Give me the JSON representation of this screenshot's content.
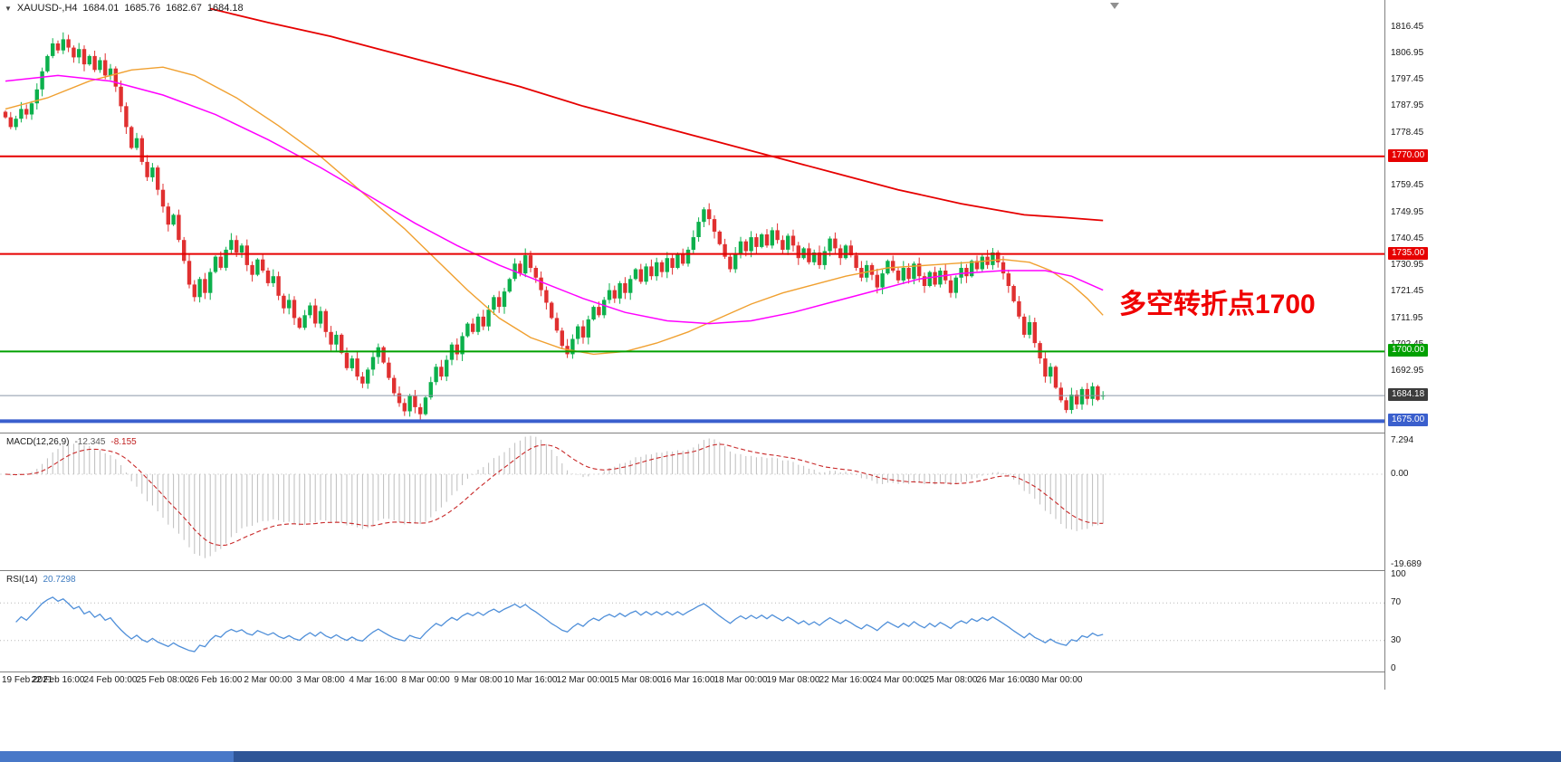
{
  "ui": {
    "header": {
      "expander_icon": "▼",
      "symbol": "XAUUSD-,H4",
      "open": "1684.01",
      "high": "1685.76",
      "low": "1682.67",
      "close": "1684.18"
    },
    "macd_label": {
      "name": "MACD(12,26,9)",
      "main": "-12.345",
      "signal": "-8.155"
    },
    "rsi_label": {
      "name": "RSI(14)",
      "value": "20.7298"
    },
    "annotation_text": "多空转折点1700"
  },
  "chart_data": [
    {
      "type": "candlestick",
      "symbol": "XAUUSD-",
      "timeframe": "H4",
      "first_open": 1786.0,
      "closes": [
        1784.0,
        1780.5,
        1783.5,
        1787.0,
        1785.0,
        1789.0,
        1794.0,
        1800.5,
        1806.0,
        1810.5,
        1808.0,
        1812.0,
        1809.0,
        1805.5,
        1808.5,
        1803.0,
        1806.0,
        1801.0,
        1804.5,
        1799.0,
        1801.5,
        1795.0,
        1788.0,
        1780.5,
        1773.0,
        1776.5,
        1768.0,
        1762.5,
        1766.0,
        1758.0,
        1752.0,
        1745.5,
        1749.0,
        1740.0,
        1732.5,
        1724.0,
        1719.5,
        1726.0,
        1721.0,
        1728.5,
        1734.0,
        1730.0,
        1736.5,
        1740.0,
        1735.5,
        1738.0,
        1731.0,
        1727.5,
        1733.0,
        1729.0,
        1724.5,
        1727.0,
        1720.0,
        1715.5,
        1718.5,
        1712.0,
        1708.5,
        1713.0,
        1716.5,
        1710.0,
        1714.5,
        1707.0,
        1702.5,
        1706.0,
        1699.5,
        1694.0,
        1697.5,
        1691.0,
        1688.5,
        1693.5,
        1698.0,
        1701.5,
        1696.0,
        1690.5,
        1685.0,
        1681.5,
        1678.5,
        1684.0,
        1680.0,
        1677.5,
        1683.5,
        1689.0,
        1694.5,
        1691.0,
        1697.0,
        1702.5,
        1699.0,
        1705.5,
        1710.0,
        1707.0,
        1712.5,
        1709.0,
        1715.0,
        1719.5,
        1716.0,
        1721.5,
        1726.0,
        1731.5,
        1728.0,
        1734.5,
        1730.0,
        1726.5,
        1722.0,
        1717.5,
        1712.0,
        1707.5,
        1702.0,
        1699.0,
        1704.5,
        1709.0,
        1705.0,
        1711.5,
        1716.0,
        1713.0,
        1718.5,
        1722.0,
        1719.0,
        1724.5,
        1721.0,
        1726.0,
        1729.5,
        1725.0,
        1730.5,
        1727.0,
        1732.0,
        1728.5,
        1733.5,
        1730.0,
        1735.0,
        1731.5,
        1736.5,
        1741.0,
        1746.5,
        1751.0,
        1747.5,
        1743.0,
        1738.5,
        1734.0,
        1729.5,
        1735.0,
        1739.5,
        1736.0,
        1741.0,
        1737.5,
        1742.0,
        1738.0,
        1743.5,
        1740.0,
        1736.5,
        1741.5,
        1738.0,
        1733.5,
        1737.0,
        1732.0,
        1735.5,
        1731.0,
        1736.0,
        1740.5,
        1737.0,
        1733.5,
        1738.0,
        1734.5,
        1730.0,
        1726.5,
        1731.0,
        1727.5,
        1723.0,
        1728.0,
        1732.5,
        1729.0,
        1725.5,
        1730.0,
        1726.0,
        1731.5,
        1727.0,
        1723.5,
        1728.5,
        1724.0,
        1729.0,
        1725.5,
        1721.0,
        1726.5,
        1730.0,
        1727.0,
        1732.5,
        1729.5,
        1734.0,
        1731.0,
        1735.5,
        1732.0,
        1728.0,
        1723.5,
        1718.0,
        1712.5,
        1706.0,
        1710.5,
        1703.0,
        1697.5,
        1691.0,
        1694.5,
        1687.0,
        1682.5,
        1679.0,
        1684.5,
        1681.0,
        1686.5,
        1683.0,
        1687.5,
        1682.67,
        1684.18
      ],
      "last_bar": {
        "open": 1684.01,
        "high": 1685.76,
        "low": 1682.67,
        "close": 1684.18
      },
      "colors": {
        "up": "#0cb04c",
        "down": "#e03030"
      },
      "y_ticks": [
        {
          "t": "1816.45",
          "v": 1816.45
        },
        {
          "t": "1806.95",
          "v": 1806.95
        },
        {
          "t": "1797.45",
          "v": 1797.45
        },
        {
          "t": "1787.95",
          "v": 1787.95
        },
        {
          "t": "1778.45",
          "v": 1778.45
        },
        {
          "t": "1759.45",
          "v": 1759.45
        },
        {
          "t": "1749.95",
          "v": 1749.95
        },
        {
          "t": "1740.45",
          "v": 1740.45
        },
        {
          "t": "1730.95",
          "v": 1730.95
        },
        {
          "t": "1721.45",
          "v": 1721.45
        },
        {
          "t": "1711.95",
          "v": 1711.95
        },
        {
          "t": "1702.45",
          "v": 1702.45
        },
        {
          "t": "1692.95",
          "v": 1692.95
        }
      ],
      "x_tick_labels": [
        "19 Feb 2021",
        "22 Feb 16:00",
        "24 Feb 00:00",
        "25 Feb 08:00",
        "26 Feb 16:00",
        "2 Mar 00:00",
        "3 Mar 08:00",
        "4 Mar 16:00",
        "8 Mar 00:00",
        "9 Mar 08:00",
        "10 Mar 16:00",
        "12 Mar 00:00",
        "15 Mar 08:00",
        "16 Mar 16:00",
        "18 Mar 00:00",
        "19 Mar 08:00",
        "22 Mar 16:00",
        "24 Mar 00:00",
        "25 Mar 08:00",
        "26 Mar 16:00",
        "30 Mar 00:00"
      ],
      "x_tick_interval": 10,
      "hlines": [
        {
          "price": 1770.0,
          "color": "#e60000",
          "width": 2,
          "label": "1770.00",
          "label_bg": "#e60000"
        },
        {
          "price": 1735.0,
          "color": "#e60000",
          "width": 2,
          "label": "1735.00",
          "label_bg": "#e60000"
        },
        {
          "price": 1700.0,
          "color": "#00a000",
          "width": 2,
          "label": "1700.00",
          "label_bg": "#00a000"
        },
        {
          "price": 1675.0,
          "color": "#3a5fcd",
          "width": 4,
          "label": "1675.00",
          "label_bg": "#3a5fcd"
        },
        {
          "price": 1684.18,
          "color": "#8a97a8",
          "width": 1,
          "label": "1684.18",
          "label_bg": "#3c3c3c"
        }
      ],
      "moving_averages": [
        {
          "name": "ma-fast-orange",
          "color": "#f0a030",
          "width": 1.4,
          "points": [
            [
              0,
              1787
            ],
            [
              8,
              1791
            ],
            [
              16,
              1797
            ],
            [
              24,
              1801
            ],
            [
              30,
              1802
            ],
            [
              36,
              1799
            ],
            [
              44,
              1791
            ],
            [
              52,
              1781
            ],
            [
              60,
              1770
            ],
            [
              68,
              1757
            ],
            [
              76,
              1744
            ],
            [
              82,
              1733
            ],
            [
              88,
              1722
            ],
            [
              94,
              1712
            ],
            [
              100,
              1705
            ],
            [
              106,
              1701
            ],
            [
              112,
              1699
            ],
            [
              118,
              1700
            ],
            [
              124,
              1703
            ],
            [
              130,
              1707
            ],
            [
              136,
              1712
            ],
            [
              142,
              1717
            ],
            [
              148,
              1721
            ],
            [
              154,
              1724
            ],
            [
              160,
              1727
            ],
            [
              168,
              1730
            ],
            [
              176,
              1731
            ],
            [
              184,
              1732
            ],
            [
              190,
              1733
            ],
            [
              195,
              1732
            ],
            [
              199,
              1729
            ],
            [
              203,
              1724
            ],
            [
              206,
              1719
            ],
            [
              209,
              1713
            ]
          ]
        },
        {
          "name": "ma-mid-magenta",
          "color": "#ff00ff",
          "width": 1.5,
          "points": [
            [
              0,
              1797
            ],
            [
              10,
              1799
            ],
            [
              20,
              1797
            ],
            [
              30,
              1792
            ],
            [
              40,
              1785
            ],
            [
              50,
              1776
            ],
            [
              60,
              1766
            ],
            [
              70,
              1755
            ],
            [
              78,
              1746
            ],
            [
              86,
              1738
            ],
            [
              94,
              1731
            ],
            [
              102,
              1725
            ],
            [
              110,
              1719
            ],
            [
              118,
              1714
            ],
            [
              126,
              1711
            ],
            [
              134,
              1710
            ],
            [
              142,
              1711
            ],
            [
              150,
              1714
            ],
            [
              158,
              1718
            ],
            [
              166,
              1722
            ],
            [
              174,
              1726
            ],
            [
              182,
              1728
            ],
            [
              190,
              1729
            ],
            [
              198,
              1729
            ],
            [
              203,
              1727
            ],
            [
              209,
              1722
            ]
          ]
        },
        {
          "name": "ma-slow-red",
          "color": "#e60000",
          "width": 1.8,
          "points": [
            [
              39,
              1823
            ],
            [
              50,
              1818
            ],
            [
              62,
              1813
            ],
            [
              74,
              1807
            ],
            [
              86,
              1801
            ],
            [
              98,
              1795
            ],
            [
              110,
              1788
            ],
            [
              122,
              1782
            ],
            [
              134,
              1776
            ],
            [
              146,
              1770
            ],
            [
              158,
              1764
            ],
            [
              170,
              1758
            ],
            [
              182,
              1753
            ],
            [
              194,
              1749
            ],
            [
              202,
              1748
            ],
            [
              209,
              1747
            ]
          ]
        }
      ],
      "annotation": {
        "text": "多空转折点1700",
        "color": "#f00000"
      }
    },
    {
      "type": "macd",
      "label": "MACD(12,26,9)",
      "fast": 12,
      "slow": 26,
      "signal_period": 9,
      "main_value": -12.345,
      "signal_value": -8.155,
      "colors": {
        "histogram": "#bdbdbd",
        "signal": "#c82828"
      },
      "y_ticks": [
        {
          "t": "7.294",
          "v": 7.294
        },
        {
          "t": "0.00",
          "v": 0
        },
        {
          "t": "-19.689",
          "v": -19.689
        }
      ]
    },
    {
      "type": "rsi",
      "label": "RSI(14)",
      "period": 14,
      "current": 20.7298,
      "levels": [
        70,
        30
      ],
      "color": "#4f8fd9",
      "y_ticks": [
        {
          "t": "100",
          "v": 100
        },
        {
          "t": "70",
          "v": 70
        },
        {
          "t": "30",
          "v": 30
        },
        {
          "t": "0",
          "v": 0
        }
      ]
    }
  ]
}
